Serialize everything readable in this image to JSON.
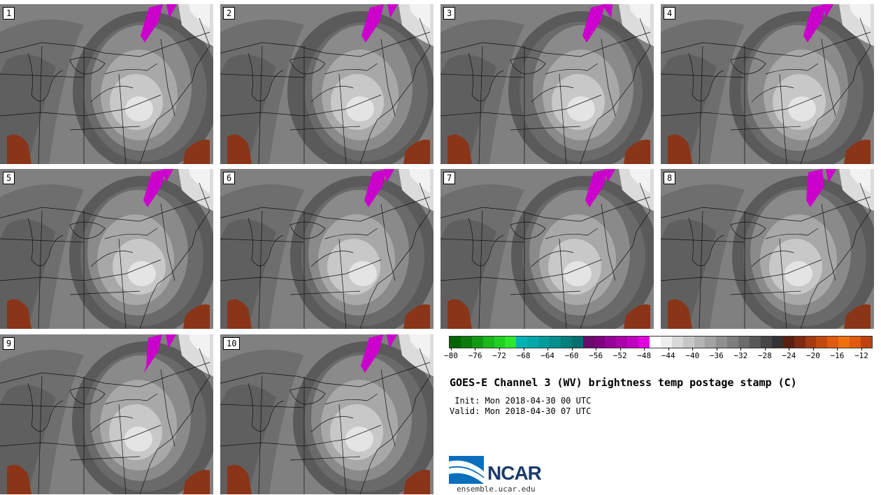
{
  "panels": [
    {
      "label": "1"
    },
    {
      "label": "2"
    },
    {
      "label": "3"
    },
    {
      "label": "4"
    },
    {
      "label": "5"
    },
    {
      "label": "6"
    },
    {
      "label": "7"
    },
    {
      "label": "8"
    },
    {
      "label": "9"
    },
    {
      "label": "10"
    }
  ],
  "colorbar": {
    "colors": [
      "#006400",
      "#0a7a0a",
      "#119a11",
      "#1cb81c",
      "#22d022",
      "#2ce82c",
      "#00b4b4",
      "#00a8a8",
      "#009c9c",
      "#008e8e",
      "#007f7f",
      "#006f6f",
      "#6a0a6a",
      "#7d007d",
      "#950095",
      "#aa00aa",
      "#c000c0",
      "#e000e0",
      "#ffffff",
      "#ededed",
      "#d9d9d9",
      "#c6c6c6",
      "#b4b4b4",
      "#a2a2a2",
      "#909090",
      "#7e7e7e",
      "#6b6b6b",
      "#585858",
      "#454545",
      "#333333",
      "#5a1f10",
      "#7d2a10",
      "#a33a10",
      "#c04a10",
      "#e05a10",
      "#f07010",
      "#e05a10",
      "#c04210"
    ],
    "ticks": [
      "−80",
      "−76",
      "−72",
      "−68",
      "−64",
      "−60",
      "−56",
      "−52",
      "−48",
      "−44",
      "−40",
      "−36",
      "−32",
      "−28",
      "−24",
      "−20",
      "−16",
      "−12"
    ]
  },
  "title": "GOES-E Channel 3 (WV) brightness temp postage stamp (C)",
  "init": " Init: Mon 2018-04-30 00 UTC",
  "valid": "Valid: Mon 2018-04-30 07 UTC",
  "logo_text": "NCAR",
  "site": "ensemble.ucar.edu"
}
